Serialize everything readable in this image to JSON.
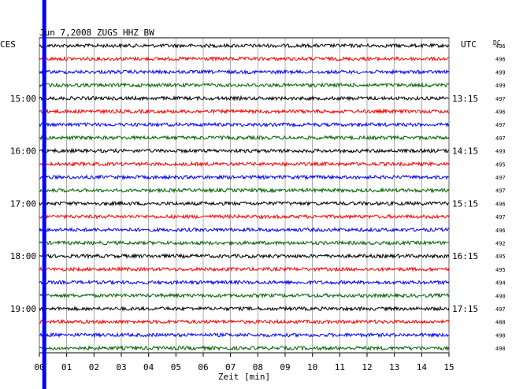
{
  "header": {
    "title": "Jun 7,2008   ZUGS HHZ BW",
    "left_label": "CES",
    "right_label": "UTC",
    "dc_label": "DC"
  },
  "chart_data": {
    "type": "line",
    "title": "Jun 7,2008   ZUGS HHZ BW",
    "xlabel": "Zeit [min]",
    "ylabel": "",
    "x_ticks": [
      "00",
      "01",
      "02",
      "03",
      "04",
      "05",
      "06",
      "07",
      "08",
      "09",
      "10",
      "11",
      "12",
      "13",
      "14",
      "15"
    ],
    "xlim": [
      0,
      15
    ],
    "grid": true,
    "trace_colors": [
      "#000000",
      "#ff0000",
      "#0000ff",
      "#006400"
    ],
    "trace_count": 24,
    "left_time_labels": [
      {
        "trace_index": 4,
        "text": "15:00"
      },
      {
        "trace_index": 8,
        "text": "16:00"
      },
      {
        "trace_index": 12,
        "text": "17:00"
      },
      {
        "trace_index": 16,
        "text": "18:00"
      },
      {
        "trace_index": 20,
        "text": "19:00"
      }
    ],
    "right_time_labels": [
      {
        "trace_index": 4,
        "text": "13:15"
      },
      {
        "trace_index": 8,
        "text": "14:15"
      },
      {
        "trace_index": 12,
        "text": "15:15"
      },
      {
        "trace_index": 16,
        "text": "16:15"
      },
      {
        "trace_index": 20,
        "text": "17:15"
      }
    ],
    "dc_values": [
      496,
      496,
      499,
      499,
      497,
      496,
      497,
      497,
      499,
      495,
      497,
      497,
      496,
      497,
      496,
      492,
      495,
      495,
      494,
      490,
      497,
      488,
      490,
      490
    ],
    "marker": {
      "color": "#0000ff",
      "x_min": 0.15
    }
  }
}
